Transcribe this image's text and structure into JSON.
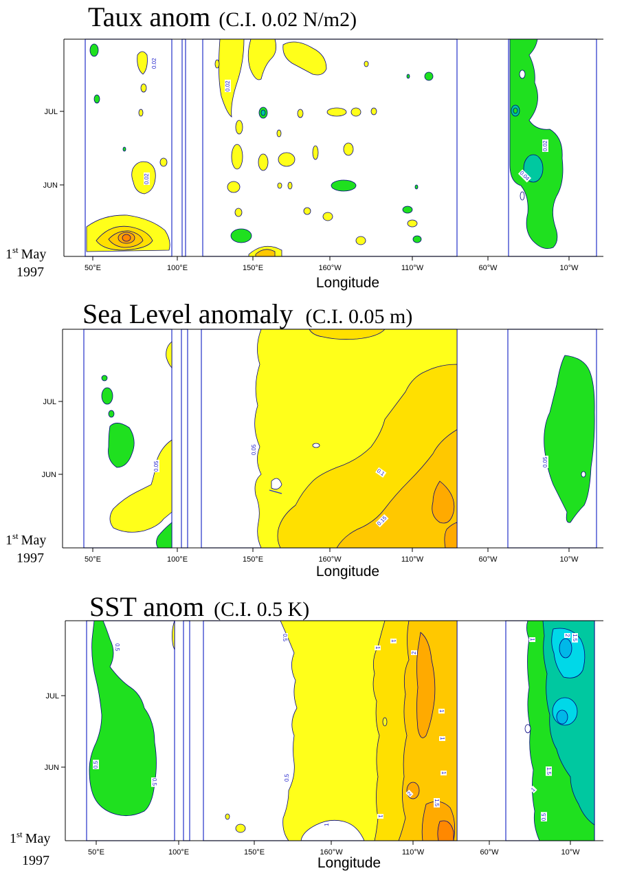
{
  "chart_data": [
    {
      "type": "heatmap",
      "title": "Taux anom",
      "title_note": "(C.I. 0.02 N/m2)",
      "xlabel": "Longitude",
      "x_ticks": [
        "50°E",
        "100°E",
        "150°E",
        "160°W",
        "110°W",
        "60°W",
        "10°W"
      ],
      "y_ticks": [
        "JUL",
        "JUN"
      ],
      "start_label": [
        "1",
        "st",
        "May",
        "1997"
      ],
      "contour_labels": [
        "0.02",
        "0.02",
        "0.02",
        "0.04",
        "0.02"
      ]
    },
    {
      "type": "heatmap",
      "title": "Sea Level anomaly",
      "title_note": "(C.I. 0.05 m)",
      "xlabel": "Longitude",
      "x_ticks": [
        "50°E",
        "100°E",
        "150°E",
        "160°W",
        "110°W",
        "60°W",
        "10°W"
      ],
      "y_ticks": [
        "JUL",
        "JUN"
      ],
      "start_label": [
        "1",
        "st",
        "May",
        "1997"
      ],
      "contour_labels": [
        "0.05",
        "0.05",
        "0.1",
        "0.15",
        "0.05"
      ]
    },
    {
      "type": "heatmap",
      "title": "SST anom",
      "title_note": "(C.I. 0.5 K)",
      "xlabel": "Longitude",
      "x_ticks": [
        "50°E",
        "100°E",
        "150°E",
        "160°W",
        "110°W",
        "60°W",
        "10°W"
      ],
      "y_ticks": [
        "JUL",
        "JUN"
      ],
      "start_label": [
        "1",
        "st",
        "May",
        "1997"
      ],
      "contour_labels": [
        "0.5",
        "0.5",
        "0.5",
        "0.5",
        "1",
        "1",
        "2",
        "1",
        "1",
        "2",
        "1.5",
        "1",
        "1",
        "1",
        "0.5",
        "1",
        "2",
        "1.5",
        "1.5",
        "1",
        "0.5"
      ]
    }
  ],
  "colors": {
    "frame": "#2230c8",
    "axis": "#000000",
    "neg": "#1fe01f",
    "neg2": "#00c8a0",
    "neg3": "#00d8e8",
    "neg4": "#00b8e8",
    "pos1": "#ffff1a",
    "pos2": "#ffe000",
    "pos3": "#ffc800",
    "pos4": "#ffaa00",
    "pos5": "#ff8800",
    "contour": "#000080"
  }
}
